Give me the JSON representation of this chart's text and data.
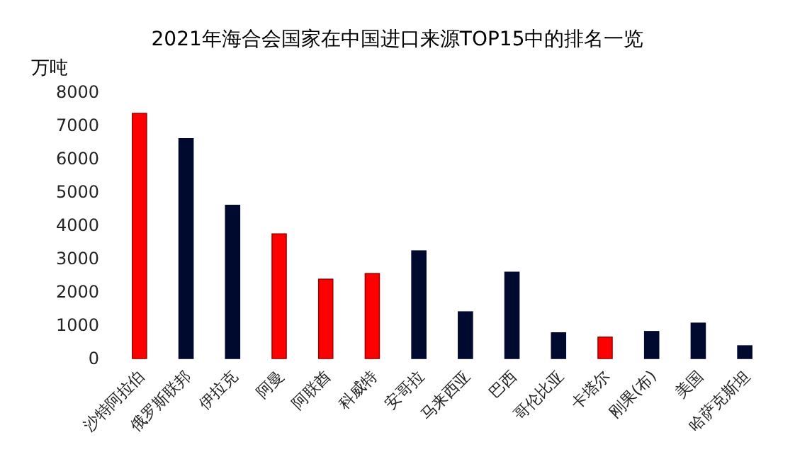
{
  "chart_data": {
    "type": "bar",
    "title": "2021年海合会国家在中国进口来源TOP15中的排名一览",
    "ylabel": "万吨",
    "categories": [
      "沙特阿拉伯",
      "俄罗斯联邦",
      "伊拉克",
      "阿曼",
      "阿联酋",
      "科威特",
      "安哥拉",
      "马来西亚",
      "巴西",
      "哥伦比亚",
      "卡塔尔",
      "刚果(布)",
      "美国",
      "哈萨克斯坦"
    ],
    "values": [
      7360,
      6600,
      4600,
      3740,
      2380,
      2550,
      3230,
      1400,
      2590,
      770,
      640,
      810,
      1060,
      380
    ],
    "colors": [
      "#ff0000",
      "#000a2e",
      "#000a2e",
      "#ff0000",
      "#ff0000",
      "#ff0000",
      "#000a2e",
      "#000a2e",
      "#000a2e",
      "#000a2e",
      "#ff0000",
      "#000a2e",
      "#000a2e",
      "#000a2e"
    ],
    "ylim": [
      0,
      8000
    ],
    "yticks": [
      0,
      1000,
      2000,
      3000,
      4000,
      5000,
      6000,
      7000,
      8000
    ],
    "grid": false
  }
}
